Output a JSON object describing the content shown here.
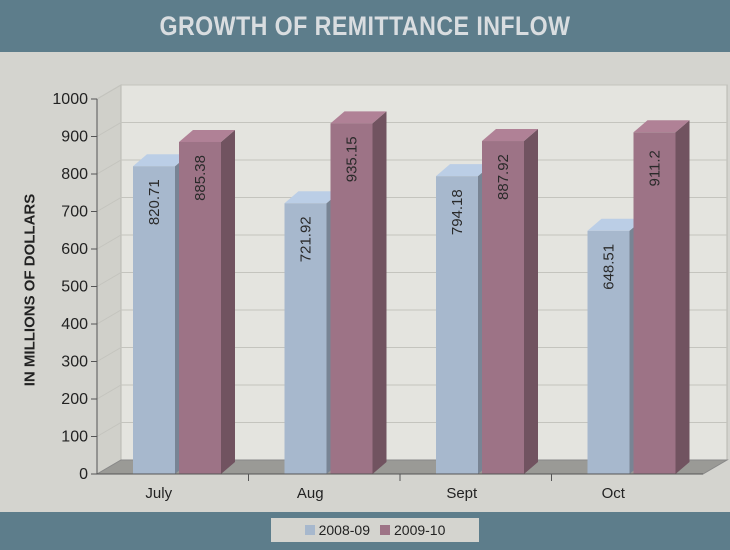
{
  "chart_data": {
    "type": "bar",
    "title": "GROWTH OF REMITTANCE INFLOW",
    "ylabel": "IN MILLIONS OF DOLLARS",
    "xlabel": "",
    "categories": [
      "July",
      "Aug",
      "Sept",
      "Oct"
    ],
    "series": [
      {
        "name": "2008-09",
        "values": [
          820.71,
          721.92,
          794.18,
          648.51
        ],
        "labels": [
          "820.71",
          "721.92",
          "794.18",
          "648.51"
        ],
        "color": "#a7b8cd"
      },
      {
        "name": "2009-10",
        "values": [
          885.38,
          935.15,
          887.92,
          911.2
        ],
        "labels": [
          "885.38",
          "935.15",
          "887.92",
          "911.2"
        ],
        "color": "#9d7386"
      }
    ],
    "ylim": [
      0,
      1000
    ],
    "yticks": [
      "0",
      "100",
      "200",
      "300",
      "400",
      "500",
      "600",
      "700",
      "800",
      "900",
      "1000"
    ],
    "grid": true,
    "legend_position": "bottom"
  }
}
